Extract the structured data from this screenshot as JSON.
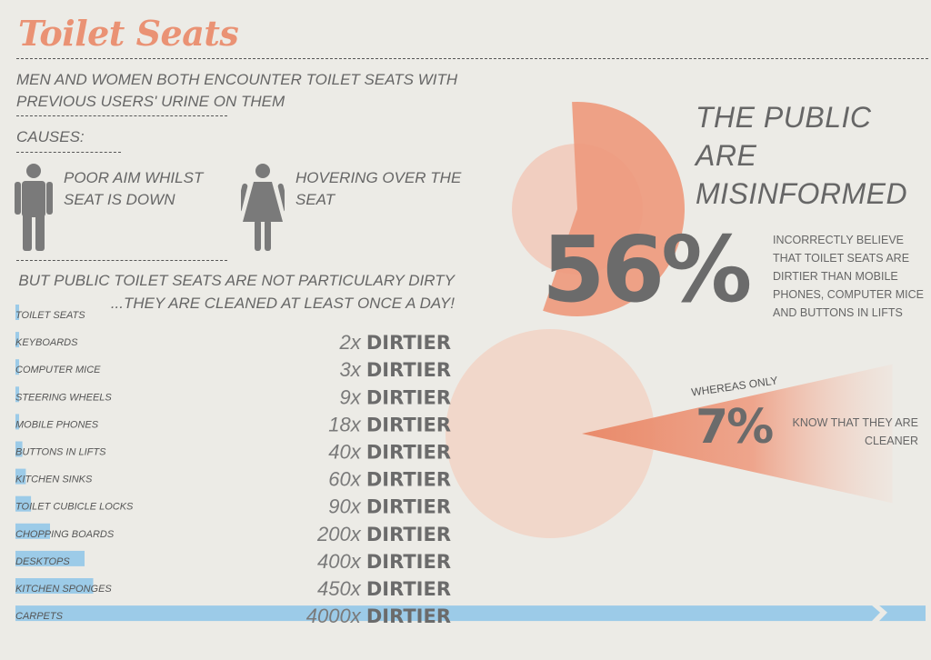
{
  "header": {
    "title": "Toilet Seats",
    "subtitle": "MEN AND WOMEN BOTH ENCOUNTER TOILET SEATS WITH PREVIOUS USERS' URINE ON THEM",
    "causes_label": "CAUSES:",
    "cause_men": "POOR  AIM WHILST SEAT IS DOWN",
    "cause_women": "HOVERING OVER THE SEAT"
  },
  "note": {
    "line1": "BUT PUBLIC TOILET SEATS ARE NOT PARTICULARY DIRTY",
    "line2": "...THEY ARE CLEANED AT LEAST ONCE A DAY!"
  },
  "misinformed": {
    "headline_1": "THE PUBLIC ARE",
    "headline_2": "MISINFORMED",
    "big_pct": "56%",
    "big_desc": "INCORRECTLY BELIEVE THAT TOILET SEATS ARE DIRTIER THAN MOBILE PHONES, COMPUTER MICE AND BUTTONS IN LIFTS",
    "whereas": "WHEREAS ONLY",
    "small_pct": "7%",
    "small_desc": "KNOW  THAT  THEY  ARE CLEANER"
  },
  "colors": {
    "accent": "#ea9274",
    "bar": "#9ccbe8",
    "text": "#666666",
    "pie_light": "#f3d3c4"
  },
  "chart_data": [
    {
      "type": "bar",
      "orientation": "horizontal",
      "categories": [
        "TOILET SEATS",
        "KEYBOARDS",
        "COMPUTER MICE",
        "STEERING WHEELS",
        "MOBILE PHONES",
        "BUTTONS IN LIFTS",
        "KITCHEN SINKS",
        "TOILET CUBICLE LOCKS",
        "CHOPPING BOARDS",
        "DESKTOPS",
        "KITCHEN SPONGES",
        "CARPETS"
      ],
      "values": [
        1,
        2,
        3,
        9,
        18,
        40,
        60,
        90,
        200,
        400,
        450,
        4000
      ],
      "value_labels": [
        "",
        "2x",
        "3x",
        "9x",
        "18x",
        "40x",
        "60x",
        "90x",
        "200x",
        "400x",
        "450x",
        "4000x"
      ],
      "value_suffix": "DIRTIER",
      "axis_break_on_last": true
    },
    {
      "type": "pie",
      "slices": [
        {
          "label": "56%",
          "value": 56
        },
        {
          "label": "",
          "value": 44
        }
      ]
    },
    {
      "type": "pie",
      "slices": [
        {
          "label": "7%",
          "value": 7
        },
        {
          "label": "",
          "value": 93
        }
      ]
    }
  ]
}
